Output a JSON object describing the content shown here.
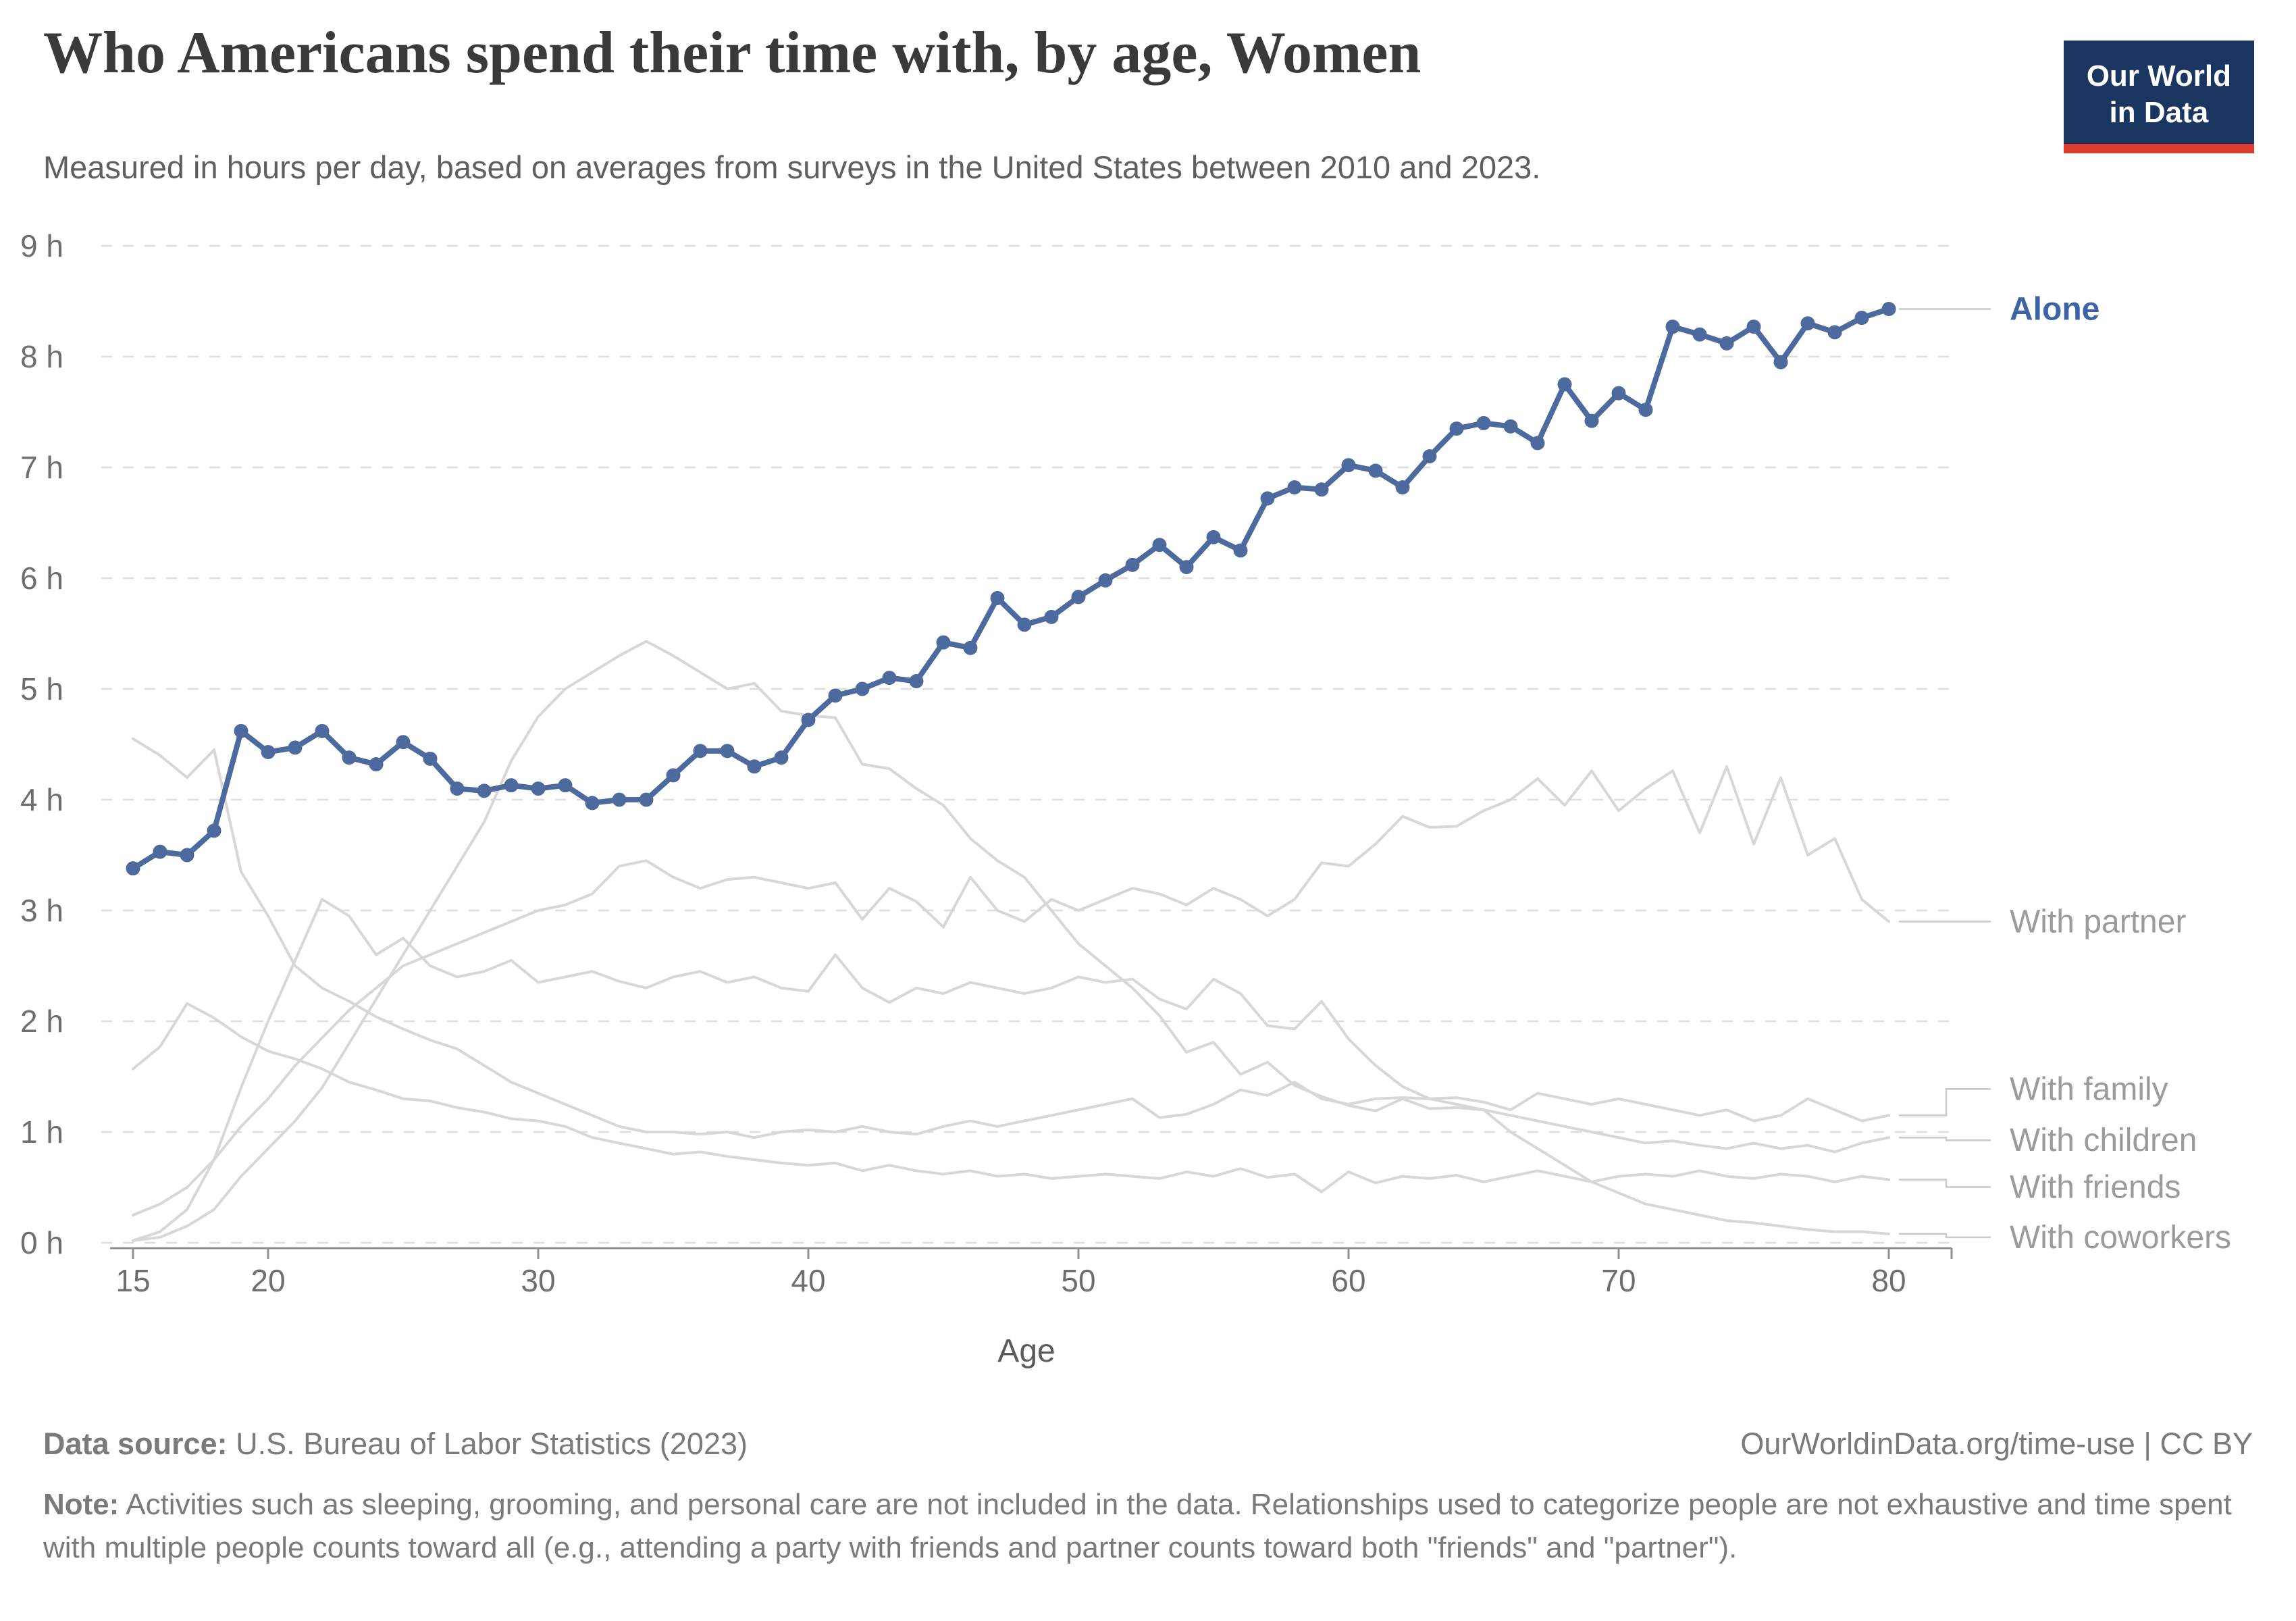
{
  "header": {
    "title": "Who Americans spend their time with, by age, Women",
    "subtitle": "Measured in hours per day, based on averages from surveys in the United States between 2010 and 2023.",
    "logo_line1": "Our World",
    "logo_line2": "in Data",
    "logo_bg": "#1a3560",
    "logo_accent": "#dc3a2b"
  },
  "chart_data": {
    "type": "line",
    "title": "Who Americans spend their time with, by age, Women",
    "xlabel": "Age",
    "ylabel": "hours per day",
    "xlim": [
      15,
      80
    ],
    "ylim": [
      0,
      9
    ],
    "grid": "dashed horizontal",
    "legend_position": "right edge labels",
    "x_ticks": [
      15,
      20,
      30,
      40,
      50,
      60,
      70,
      80
    ],
    "y_tick_labels": [
      "0 h",
      "1 h",
      "2 h",
      "3 h",
      "4 h",
      "5 h",
      "6 h",
      "7 h",
      "8 h",
      "9 h"
    ],
    "highlight_color": "#4d6a9f",
    "highlight_label_color": "#3d64a5",
    "muted_color": "#d7d7d7",
    "muted_label_color": "#9b9b9b",
    "ages": [
      15,
      16,
      17,
      18,
      19,
      20,
      21,
      22,
      23,
      24,
      25,
      26,
      27,
      28,
      29,
      30,
      31,
      32,
      33,
      34,
      35,
      36,
      37,
      38,
      39,
      40,
      41,
      42,
      43,
      44,
      45,
      46,
      47,
      48,
      49,
      50,
      51,
      52,
      53,
      54,
      55,
      56,
      57,
      58,
      59,
      60,
      61,
      62,
      63,
      64,
      65,
      66,
      67,
      68,
      69,
      70,
      71,
      72,
      73,
      74,
      75,
      76,
      77,
      78,
      79,
      80
    ],
    "series": [
      {
        "name": "Alone",
        "highlight": true,
        "values": [
          3.38,
          3.53,
          3.5,
          3.72,
          4.62,
          4.43,
          4.47,
          4.62,
          4.38,
          4.32,
          4.52,
          4.37,
          4.1,
          4.08,
          4.13,
          4.1,
          4.13,
          3.97,
          4.0,
          4.0,
          4.22,
          4.44,
          4.44,
          4.3,
          4.38,
          4.72,
          4.94,
          5.0,
          5.1,
          5.07,
          5.42,
          5.37,
          5.82,
          5.58,
          5.65,
          5.83,
          5.98,
          6.12,
          6.3,
          6.1,
          6.37,
          6.25,
          6.72,
          6.82,
          6.8,
          7.02,
          6.97,
          6.82,
          7.1,
          7.35,
          7.4,
          7.37,
          7.22,
          7.75,
          7.42,
          7.67,
          7.52,
          8.27,
          8.2,
          8.12,
          8.27,
          7.95,
          8.3,
          8.22,
          8.35,
          8.43
        ]
      },
      {
        "name": "With partner",
        "highlight": false,
        "values": [
          0.25,
          0.35,
          0.5,
          0.75,
          1.05,
          1.3,
          1.6,
          1.85,
          2.1,
          2.3,
          2.5,
          2.6,
          2.7,
          2.8,
          2.9,
          3.0,
          3.05,
          3.15,
          3.4,
          3.45,
          3.3,
          3.2,
          3.28,
          3.3,
          3.25,
          3.2,
          3.25,
          2.92,
          3.2,
          3.08,
          2.85,
          3.3,
          3.0,
          2.9,
          3.1,
          3.0,
          3.1,
          3.2,
          3.15,
          3.05,
          3.2,
          3.1,
          2.95,
          3.1,
          3.43,
          3.4,
          3.6,
          3.85,
          3.75,
          3.76,
          3.9,
          4.0,
          4.19,
          3.95,
          4.26,
          3.9,
          4.1,
          4.26,
          3.7,
          4.3,
          3.6,
          4.2,
          3.5,
          3.65,
          3.1,
          2.9
        ]
      },
      {
        "name": "With family",
        "highlight": false,
        "values": [
          4.55,
          4.4,
          4.2,
          4.45,
          3.35,
          2.95,
          2.5,
          2.3,
          2.18,
          2.04,
          1.93,
          1.83,
          1.75,
          1.6,
          1.45,
          1.35,
          1.25,
          1.15,
          1.05,
          1.0,
          1.0,
          0.98,
          1.0,
          0.95,
          1.0,
          1.02,
          1.0,
          1.05,
          1.0,
          0.98,
          1.05,
          1.1,
          1.05,
          1.1,
          1.15,
          1.2,
          1.25,
          1.3,
          1.13,
          1.16,
          1.25,
          1.38,
          1.33,
          1.45,
          1.3,
          1.25,
          1.3,
          1.31,
          1.3,
          1.31,
          1.27,
          1.2,
          1.35,
          1.3,
          1.25,
          1.3,
          1.25,
          1.2,
          1.15,
          1.2,
          1.1,
          1.15,
          1.3,
          1.2,
          1.1,
          1.15
        ]
      },
      {
        "name": "With children",
        "highlight": false,
        "values": [
          0.02,
          0.05,
          0.15,
          0.3,
          0.6,
          0.85,
          1.1,
          1.4,
          1.8,
          2.2,
          2.6,
          3.0,
          3.4,
          3.8,
          4.35,
          4.75,
          5.0,
          5.15,
          5.3,
          5.43,
          5.3,
          5.15,
          5.0,
          5.05,
          4.8,
          4.76,
          4.74,
          4.32,
          4.28,
          4.1,
          3.95,
          3.65,
          3.45,
          3.3,
          3.0,
          2.7,
          2.5,
          2.3,
          2.05,
          1.72,
          1.81,
          1.52,
          1.63,
          1.42,
          1.32,
          1.24,
          1.19,
          1.3,
          1.21,
          1.22,
          1.2,
          1.15,
          1.1,
          1.05,
          1.0,
          0.95,
          0.9,
          0.92,
          0.88,
          0.85,
          0.9,
          0.85,
          0.88,
          0.82,
          0.9,
          0.95
        ]
      },
      {
        "name": "With friends",
        "highlight": false,
        "values": [
          1.57,
          1.77,
          2.16,
          2.03,
          1.86,
          1.73,
          1.66,
          1.57,
          1.45,
          1.38,
          1.3,
          1.28,
          1.22,
          1.18,
          1.12,
          1.1,
          1.05,
          0.95,
          0.9,
          0.85,
          0.8,
          0.82,
          0.78,
          0.75,
          0.72,
          0.7,
          0.72,
          0.65,
          0.7,
          0.65,
          0.62,
          0.65,
          0.6,
          0.62,
          0.58,
          0.6,
          0.62,
          0.6,
          0.58,
          0.64,
          0.6,
          0.67,
          0.59,
          0.62,
          0.46,
          0.64,
          0.54,
          0.6,
          0.58,
          0.61,
          0.55,
          0.6,
          0.65,
          0.6,
          0.55,
          0.6,
          0.62,
          0.6,
          0.65,
          0.6,
          0.58,
          0.62,
          0.6,
          0.55,
          0.6,
          0.57
        ]
      },
      {
        "name": "With coworkers",
        "highlight": false,
        "values": [
          0.02,
          0.1,
          0.3,
          0.75,
          1.4,
          2.0,
          2.55,
          3.1,
          2.95,
          2.6,
          2.75,
          2.5,
          2.4,
          2.45,
          2.55,
          2.35,
          2.4,
          2.45,
          2.36,
          2.3,
          2.4,
          2.45,
          2.35,
          2.4,
          2.3,
          2.27,
          2.6,
          2.3,
          2.17,
          2.3,
          2.25,
          2.35,
          2.3,
          2.25,
          2.3,
          2.4,
          2.35,
          2.38,
          2.2,
          2.11,
          2.38,
          2.25,
          1.96,
          1.93,
          2.18,
          1.84,
          1.6,
          1.41,
          1.3,
          1.25,
          1.2,
          1.0,
          0.85,
          0.7,
          0.55,
          0.45,
          0.35,
          0.3,
          0.25,
          0.2,
          0.18,
          0.15,
          0.12,
          0.1,
          0.1,
          0.08
        ]
      }
    ]
  },
  "footer": {
    "datasource_label": "Data source:",
    "datasource_text": " U.S. Bureau of Labor Statistics (2023)",
    "url_text": "OurWorldinData.org/time-use | CC BY",
    "note_label": "Note:",
    "note_text": " Activities such as sleeping, grooming, and personal care are not included in the data. Relationships used to categorize people are not exhaustive and time spent with multiple people counts toward all (e.g., attending a party with friends and partner counts toward both \"friends\" and \"partner\")."
  }
}
